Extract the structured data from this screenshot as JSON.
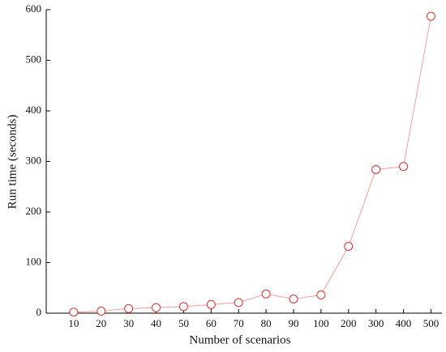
{
  "chart_data": {
    "type": "line",
    "xlabel": "Number of scenarios",
    "ylabel": "Run time (seconds)",
    "categories": [
      "10",
      "20",
      "30",
      "40",
      "50",
      "60",
      "70",
      "80",
      "90",
      "100",
      "200",
      "300",
      "400",
      "500"
    ],
    "values": [
      2,
      4,
      9,
      11,
      13,
      17,
      21,
      38,
      28,
      36,
      132,
      284,
      290,
      587
    ],
    "color": "#f4a0a0",
    "marker_color": "#e03030",
    "ylim": [
      0,
      600
    ],
    "yticks": [
      0,
      100,
      200,
      300,
      400,
      500,
      600
    ],
    "grid": false
  }
}
